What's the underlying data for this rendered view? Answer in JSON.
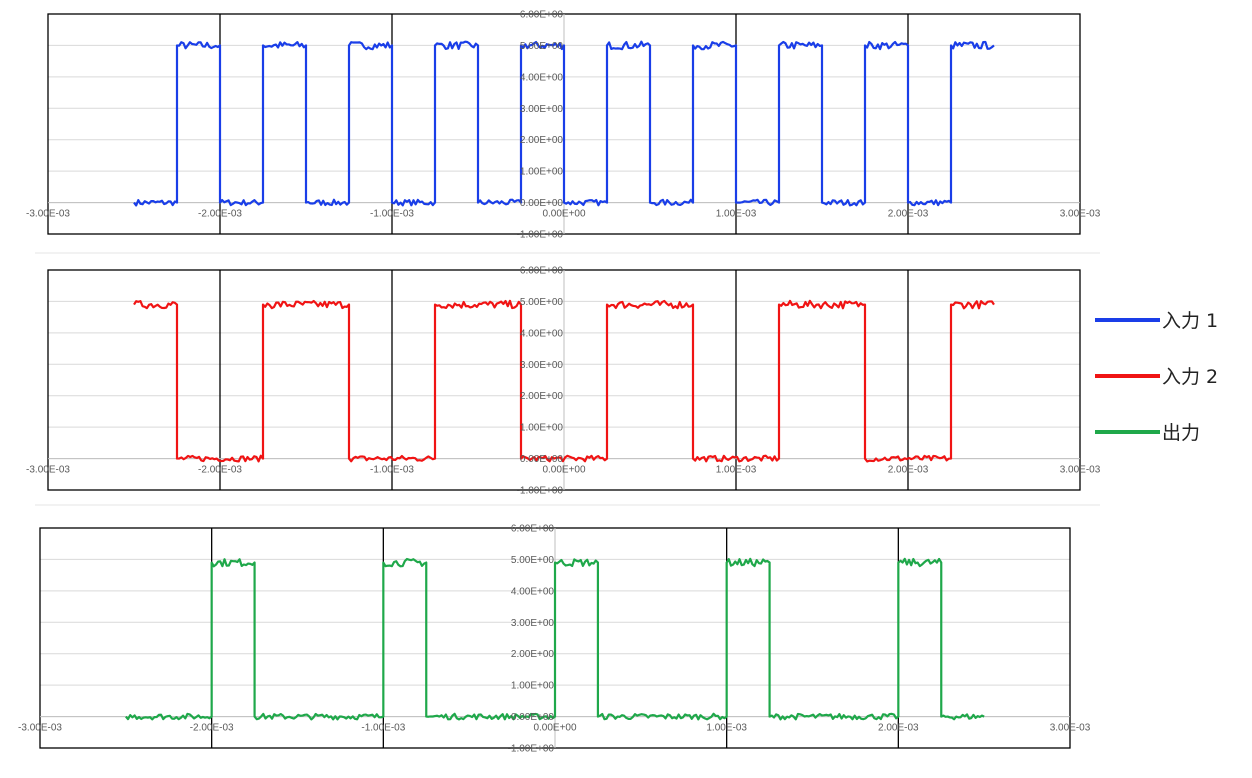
{
  "chart_data": [
    {
      "type": "line",
      "color": "#1a3ee8",
      "xlim": [
        -0.003,
        0.003
      ],
      "ylim": [
        -1,
        6
      ],
      "x_ticks": [
        "-3.00E-03",
        "-2.00E-03",
        "-1.00E-03",
        "0.00E+00",
        "1.00E-03",
        "2.00E-03",
        "3.00E-03"
      ],
      "y_ticks": [
        "-1.00E+00",
        "0.00E+00",
        "1.00E+00",
        "2.00E+00",
        "3.00E+00",
        "4.00E+00",
        "5.00E+00",
        "6.00E+00"
      ],
      "gridlines": {
        "horizontal": true,
        "vertical_at": [
          -0.002,
          -0.001,
          0.001,
          0.002
        ]
      },
      "series": [
        {
          "name": "入力 1",
          "x": [
            -0.0025,
            -0.00225,
            -0.00225,
            -0.002,
            -0.002,
            -0.00175,
            -0.00175,
            -0.0015,
            -0.0015,
            -0.00125,
            -0.00125,
            -0.001,
            -0.001,
            -0.00075,
            -0.00075,
            -0.0005,
            -0.0005,
            -0.00025,
            -0.00025,
            0.0,
            0.0,
            0.00025,
            0.00025,
            0.0005,
            0.0005,
            0.00075,
            0.00075,
            0.001,
            0.001,
            0.00125,
            0.00125,
            0.0015,
            0.0015,
            0.00175,
            0.00175,
            0.002,
            0.002,
            0.00225,
            0.00225,
            0.0025
          ],
          "y": [
            0,
            0,
            5,
            5,
            0,
            0,
            5,
            5,
            0,
            0,
            5,
            5,
            0,
            0,
            5,
            5,
            0,
            0,
            5,
            5,
            0,
            0,
            5,
            5,
            0,
            0,
            5,
            5,
            0,
            0,
            5,
            5,
            0,
            0,
            5,
            5,
            0,
            0,
            5,
            5
          ]
        }
      ]
    },
    {
      "type": "line",
      "color": "#f01414",
      "xlim": [
        -0.003,
        0.003
      ],
      "ylim": [
        -1,
        6
      ],
      "x_ticks": [
        "-3.00E-03",
        "-2.00E-03",
        "-1.00E-03",
        "0.00E+00",
        "1.00E-03",
        "2.00E-03",
        "3.00E-03"
      ],
      "y_ticks": [
        "-1.00E+00",
        "0.00E+00",
        "1.00E+00",
        "2.00E+00",
        "3.00E+00",
        "4.00E+00",
        "5.00E+00",
        "6.00E+00"
      ],
      "gridlines": {
        "horizontal": true,
        "vertical_at": [
          -0.002,
          -0.001,
          0.001,
          0.002
        ]
      },
      "series": [
        {
          "name": "入力 2",
          "x": [
            -0.0025,
            -0.00225,
            -0.00225,
            -0.00175,
            -0.00175,
            -0.00125,
            -0.00125,
            -0.00075,
            -0.00075,
            -0.00025,
            -0.00025,
            0.00025,
            0.00025,
            0.00075,
            0.00075,
            0.00125,
            0.00125,
            0.00175,
            0.00175,
            0.00225,
            0.00225,
            0.0025
          ],
          "y": [
            4.9,
            4.9,
            0,
            0,
            4.9,
            4.9,
            0,
            0,
            4.9,
            4.9,
            0,
            0,
            4.9,
            4.9,
            0,
            0,
            4.9,
            4.9,
            0,
            0,
            4.9,
            4.9
          ]
        }
      ]
    },
    {
      "type": "line",
      "color": "#1fa84a",
      "xlim": [
        -0.003,
        0.003
      ],
      "ylim": [
        -1,
        6
      ],
      "x_ticks": [
        "-3.00E-03",
        "-2.00E-03",
        "-1.00E-03",
        "0.00E+00",
        "1.00E-03",
        "2.00E-03",
        "3.00E-03"
      ],
      "y_ticks": [
        "-1.00E+00",
        "0.00E+00",
        "1.00E+00",
        "2.00E+00",
        "3.00E+00",
        "4.00E+00",
        "5.00E+00",
        "6.00E+00"
      ],
      "gridlines": {
        "horizontal": true,
        "vertical_at": [
          -0.002,
          -0.001,
          0.001,
          0.002
        ]
      },
      "series": [
        {
          "name": "出力",
          "x": [
            -0.0025,
            -0.002,
            -0.002,
            -0.00175,
            -0.00175,
            -0.001,
            -0.001,
            -0.00075,
            -0.00075,
            0.0,
            0.0,
            0.00025,
            0.00025,
            0.001,
            0.001,
            0.00125,
            0.00125,
            0.002,
            0.002,
            0.00225,
            0.00225,
            0.0025
          ],
          "y": [
            0,
            0,
            4.9,
            4.9,
            0,
            0,
            4.9,
            4.9,
            0,
            0,
            4.9,
            4.9,
            0,
            0,
            4.9,
            4.9,
            0,
            0,
            4.9,
            4.9,
            0,
            0
          ]
        }
      ]
    }
  ],
  "legend": {
    "placement": "right",
    "items": [
      {
        "label": "入力 1",
        "color": "#1a3ee8"
      },
      {
        "label": "入力 2",
        "color": "#f01414"
      },
      {
        "label": "出力",
        "color": "#1fa84a"
      }
    ]
  }
}
